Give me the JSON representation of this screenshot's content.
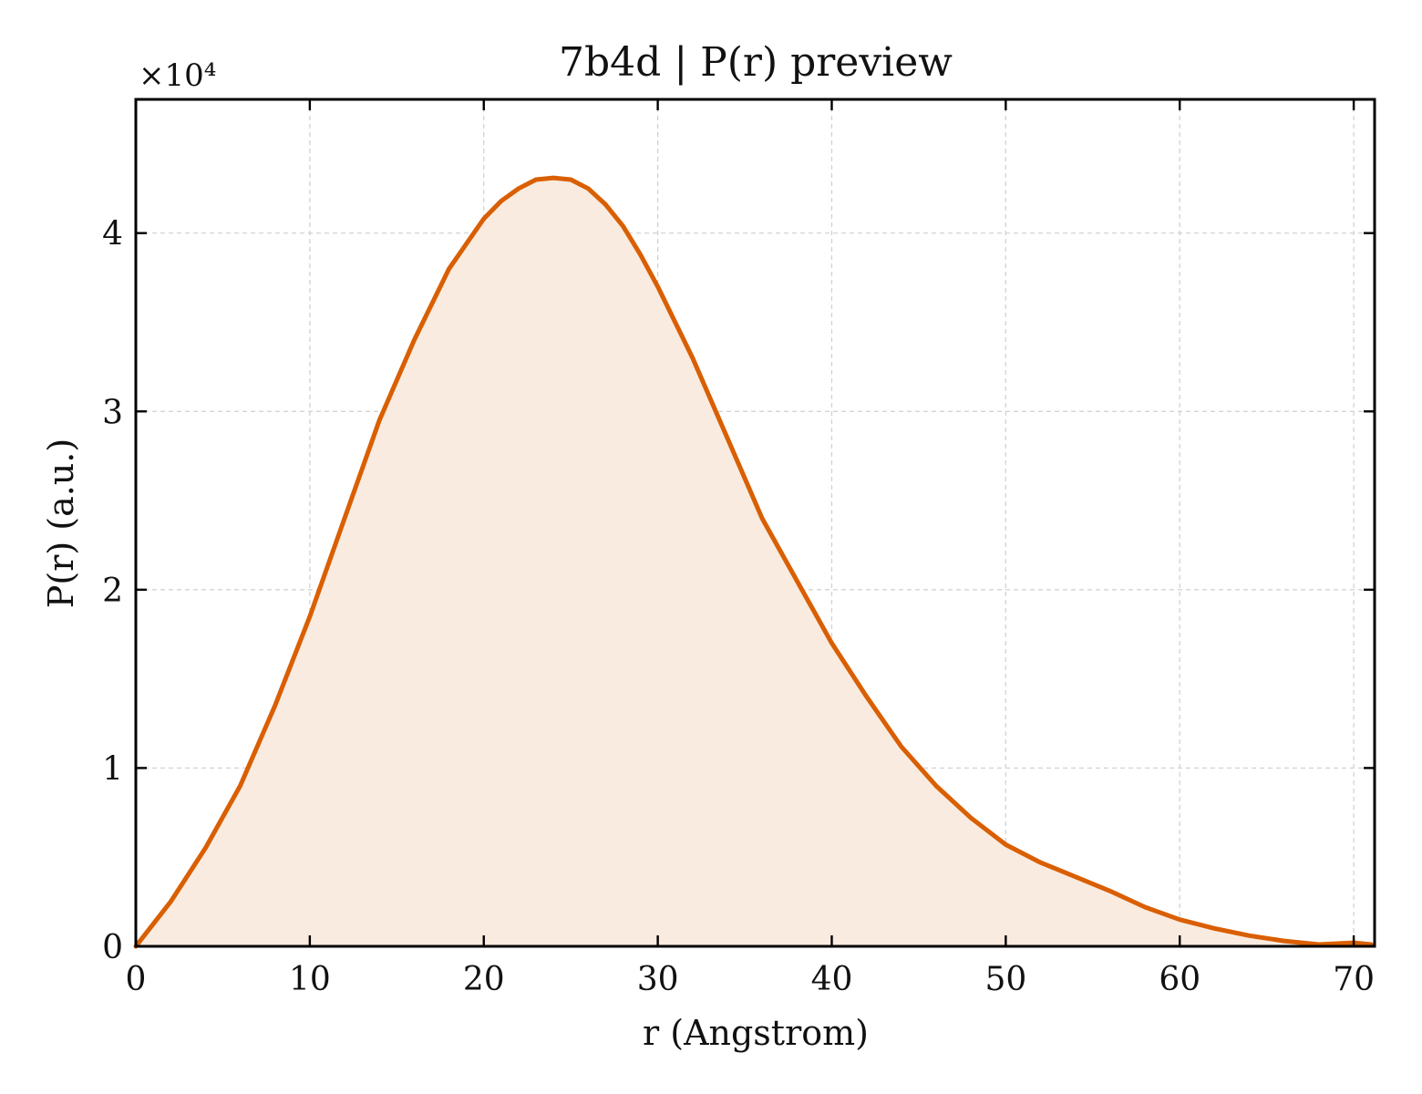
{
  "chart_data": {
    "type": "area",
    "title": "7b4d | P(r) preview",
    "xlabel": "r (Angstrom)",
    "ylabel": "P(r) (a.u.)",
    "y_offset_label": "×10⁴",
    "xlim": [
      0,
      71.2
    ],
    "ylim": [
      0,
      4.75
    ],
    "x_ticks": [
      0,
      10,
      20,
      30,
      40,
      50,
      60,
      70
    ],
    "y_ticks": [
      0,
      1,
      2,
      3,
      4
    ],
    "x_tick_labels": [
      "0",
      "10",
      "20",
      "30",
      "40",
      "50",
      "60",
      "70"
    ],
    "y_tick_labels": [
      "0",
      "1",
      "2",
      "3",
      "4"
    ],
    "grid": true,
    "legend": "none",
    "line_color": "#d95f02",
    "fill_color": "#f9ebe0",
    "series": [
      {
        "x": [
          0,
          2,
          4,
          6,
          8,
          10,
          12,
          14,
          16,
          18,
          20,
          21,
          22,
          23,
          24,
          25,
          26,
          27,
          28,
          29,
          30,
          32,
          34,
          36,
          38,
          40,
          42,
          44,
          46,
          48,
          50,
          52,
          54,
          56,
          58,
          60,
          62,
          64,
          66,
          68,
          70,
          71
        ],
        "y": [
          0.0,
          0.25,
          0.55,
          0.9,
          1.35,
          1.85,
          2.4,
          2.95,
          3.4,
          3.8,
          4.08,
          4.18,
          4.25,
          4.3,
          4.31,
          4.3,
          4.25,
          4.16,
          4.04,
          3.88,
          3.7,
          3.3,
          2.85,
          2.4,
          2.05,
          1.7,
          1.4,
          1.12,
          0.9,
          0.72,
          0.57,
          0.47,
          0.39,
          0.31,
          0.22,
          0.15,
          0.1,
          0.06,
          0.03,
          0.01,
          0.02,
          0.01
        ]
      }
    ]
  }
}
